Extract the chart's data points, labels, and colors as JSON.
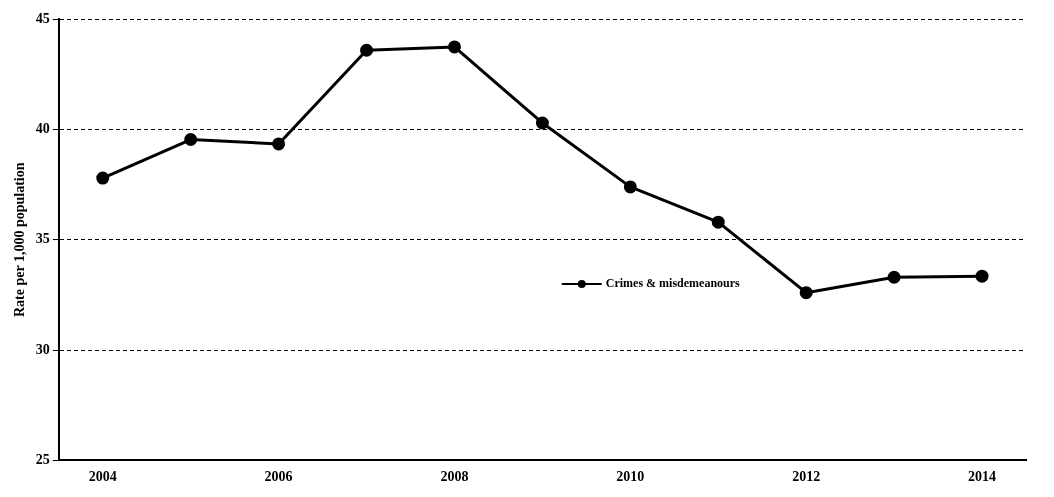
{
  "chart_data": {
    "type": "line",
    "ylabel": "Rate per 1,000 population",
    "categories": [
      "2004",
      null,
      "2006",
      null,
      "2008",
      null,
      "2010",
      null,
      "2012",
      null,
      "2014"
    ],
    "series": [
      {
        "name": "Crimes & misdemeanours",
        "color": "#000000",
        "values": [
          37.8,
          39.55,
          39.35,
          43.6,
          43.75,
          40.3,
          37.4,
          35.8,
          32.6,
          33.3,
          33.35
        ]
      }
    ],
    "ylim": [
      25,
      45
    ],
    "yticks": [
      25,
      30,
      35,
      40,
      45
    ],
    "grid": "y",
    "legend": "center",
    "marker": "circle",
    "line_style": "solid"
  }
}
